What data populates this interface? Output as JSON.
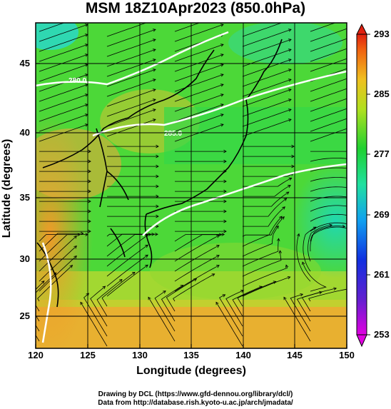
{
  "title": "MSM 18Z10Apr2023 (850.0hPa)",
  "xaxis": {
    "label": "Longitude (degrees)",
    "ticks": [
      "120",
      "125",
      "130",
      "135",
      "140",
      "145",
      "150"
    ],
    "range": [
      120,
      150
    ]
  },
  "yaxis": {
    "label": "Latitude  (degrees)",
    "ticks": [
      "25",
      "30",
      "35",
      "40",
      "45"
    ],
    "range": [
      22.4,
      47.6
    ]
  },
  "colorbar": {
    "ticks": [
      "293",
      "285",
      "277",
      "269",
      "261",
      "253"
    ],
    "range": [
      253,
      293
    ]
  },
  "contour_labels": [
    "280.0",
    "285.0"
  ],
  "credits": {
    "line1": "Drawing by DCL (https://www.gfd-dennou.org/library/dcl/)",
    "line2": "Data from http://database.rish.kyoto-u.ac.jp/arch/jmadata/"
  },
  "colors": {
    "warm": "#f0a830",
    "mid": "#8ad82a",
    "cool": "#28d850",
    "cold": "#20d8d8"
  }
}
